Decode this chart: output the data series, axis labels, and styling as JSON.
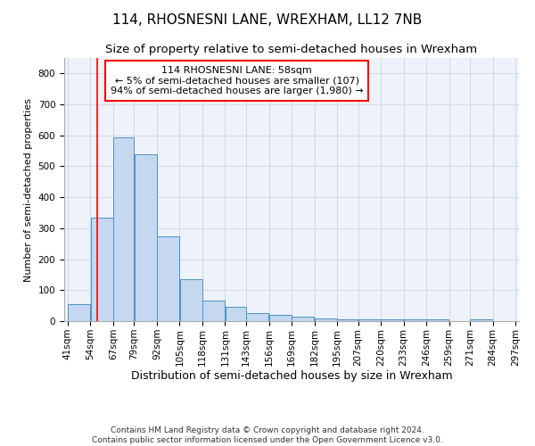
{
  "title": "114, RHOSNESNI LANE, WREXHAM, LL12 7NB",
  "subtitle": "Size of property relative to semi-detached houses in Wrexham",
  "xlabel": "Distribution of semi-detached houses by size in Wrexham",
  "ylabel": "Number of semi-detached properties",
  "footnote1": "Contains HM Land Registry data © Crown copyright and database right 2024.",
  "footnote2": "Contains public sector information licensed under the Open Government Licence v3.0.",
  "annotation_line1": "114 RHOSNESNI LANE: 58sqm",
  "annotation_line2": "← 5% of semi-detached houses are smaller (107)",
  "annotation_line3": "94% of semi-detached houses are larger (1,980) →",
  "bar_left_edges": [
    41,
    54,
    67,
    79,
    92,
    105,
    118,
    131,
    143,
    156,
    169,
    182,
    195,
    207,
    220,
    233,
    246,
    259,
    271,
    284
  ],
  "bar_widths": [
    13,
    13,
    12,
    13,
    13,
    13,
    13,
    12,
    13,
    13,
    13,
    13,
    12,
    13,
    13,
    13,
    13,
    12,
    13,
    13
  ],
  "bar_heights": [
    55,
    335,
    595,
    540,
    275,
    135,
    65,
    45,
    27,
    20,
    15,
    10,
    7,
    5,
    7,
    5,
    5,
    0,
    5,
    0
  ],
  "bar_color": "#c5d8f0",
  "bar_edge_color": "#4a90c4",
  "grid_color": "#d0d8e8",
  "background_color": "#eef2fa",
  "red_line_x": 58,
  "ylim": [
    0,
    850
  ],
  "yticks": [
    0,
    100,
    200,
    300,
    400,
    500,
    600,
    700,
    800
  ],
  "x_tick_labels": [
    "41sqm",
    "54sqm",
    "67sqm",
    "79sqm",
    "92sqm",
    "105sqm",
    "118sqm",
    "131sqm",
    "143sqm",
    "156sqm",
    "169sqm",
    "182sqm",
    "195sqm",
    "207sqm",
    "220sqm",
    "233sqm",
    "246sqm",
    "259sqm",
    "271sqm",
    "284sqm",
    "297sqm"
  ],
  "title_fontsize": 11,
  "subtitle_fontsize": 9.5,
  "xlabel_fontsize": 9,
  "ylabel_fontsize": 8,
  "tick_fontsize": 7.5,
  "annotation_fontsize": 8,
  "footnote_fontsize": 6.5
}
